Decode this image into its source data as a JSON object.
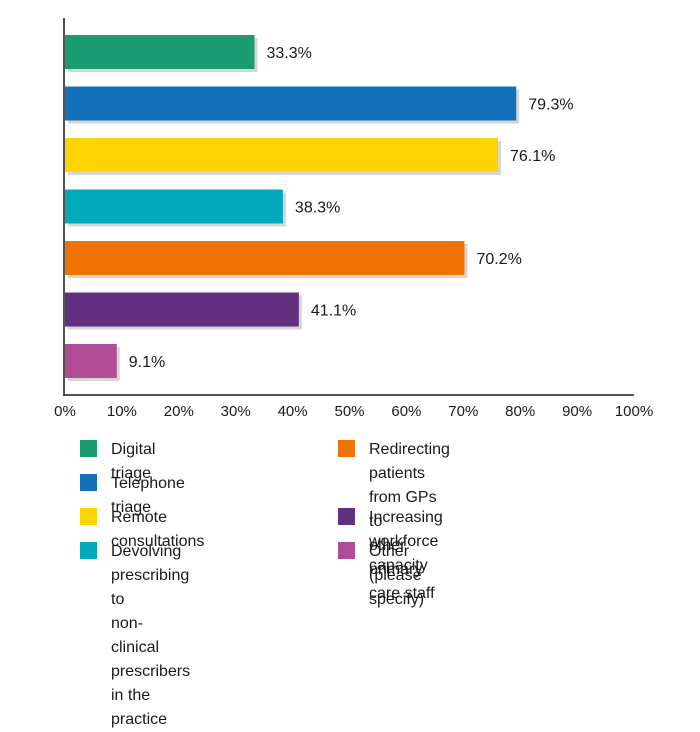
{
  "chart_data": {
    "type": "bar",
    "orientation": "horizontal",
    "categories": [
      "Digital triage",
      "Telephone triage",
      "Remote consultations",
      "Devolving prescribing to\nnon-clinical prescribers\nin the practice",
      "Redirecting patients from GPs to\nother primary care staff",
      "Increasing workforce capacity",
      "Other (please specify)"
    ],
    "values": [
      33.3,
      79.3,
      76.1,
      38.3,
      70.2,
      41.1,
      9.1
    ],
    "value_labels": [
      "33.3%",
      "79.3%",
      "76.1%",
      "38.3%",
      "70.2%",
      "41.1%",
      "9.1%"
    ],
    "colors": [
      "#1a9b72",
      "#1470b8",
      "#ffd400",
      "#00a9ba",
      "#ef7300",
      "#63307f",
      "#b04b96"
    ],
    "xlim": [
      0,
      100
    ],
    "x_ticks": [
      "0%",
      "10%",
      "20%",
      "30%",
      "40%",
      "50%",
      "60%",
      "70%",
      "80%",
      "90%",
      "100%"
    ],
    "grid": false,
    "legend_position": "bottom"
  }
}
